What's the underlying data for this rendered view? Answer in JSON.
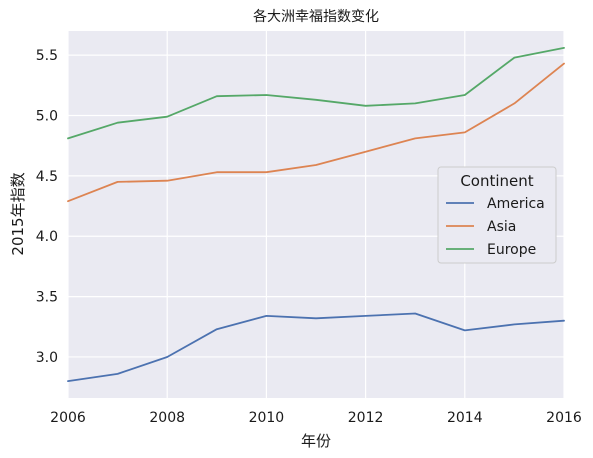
{
  "chart_data": {
    "type": "line",
    "title": "各大洲幸福指数变化",
    "xlabel": "年份",
    "ylabel": "2015年指数",
    "x": [
      2006,
      2007,
      2008,
      2009,
      2010,
      2011,
      2012,
      2013,
      2014,
      2015,
      2016
    ],
    "xlim": [
      2006,
      2016
    ],
    "ylim": [
      2.66,
      5.7
    ],
    "xticks": [
      2006,
      2008,
      2010,
      2012,
      2014,
      2016
    ],
    "xtick_labels": [
      "2006",
      "2008",
      "2010",
      "2012",
      "2014",
      "2016"
    ],
    "yticks": [
      3.0,
      3.5,
      4.0,
      4.5,
      5.0,
      5.5
    ],
    "ytick_labels": [
      "3.0",
      "3.5",
      "4.0",
      "4.5",
      "5.0",
      "5.5"
    ],
    "grid": true,
    "legend": {
      "title": "Continent",
      "position": "right"
    },
    "series": [
      {
        "name": "America",
        "color": "#4c72b0",
        "values": [
          2.8,
          2.86,
          3.0,
          3.23,
          3.34,
          3.32,
          3.34,
          3.36,
          3.22,
          3.27,
          3.3
        ]
      },
      {
        "name": "Asia",
        "color": "#dd8452",
        "values": [
          4.29,
          4.45,
          4.46,
          4.53,
          4.53,
          4.59,
          4.7,
          4.81,
          4.86,
          5.1,
          5.43
        ]
      },
      {
        "name": "Europe",
        "color": "#55a868",
        "values": [
          4.81,
          4.94,
          4.99,
          5.16,
          5.17,
          5.13,
          5.08,
          5.1,
          5.17,
          5.48,
          5.56
        ]
      }
    ]
  }
}
